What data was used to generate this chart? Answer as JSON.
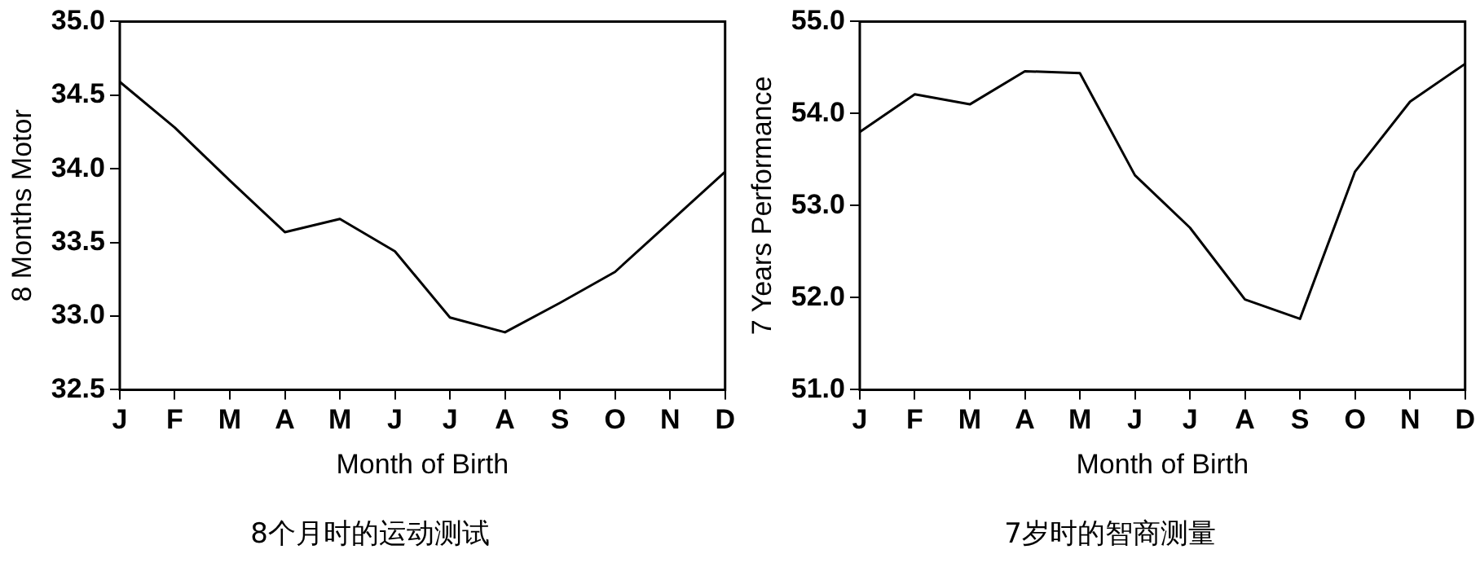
{
  "chart_data": [
    {
      "type": "line",
      "xlabel": "Month of Birth",
      "ylabel": "8 Months Motor",
      "categories": [
        "J",
        "F",
        "M",
        "A",
        "M",
        "J",
        "J",
        "A",
        "S",
        "O",
        "N",
        "D"
      ],
      "series": [
        {
          "color": "#000000",
          "values": [
            34.59,
            34.28,
            33.92,
            33.57,
            33.66,
            33.44,
            32.99,
            32.89,
            33.09,
            33.3,
            33.64,
            33.98
          ]
        }
      ],
      "ylim": [
        32.5,
        35.0
      ],
      "yticks": [
        {
          "value": 32.5,
          "label": "32.5"
        },
        {
          "value": 33,
          "label": "33.0"
        },
        {
          "value": 33.5,
          "label": "33.5"
        },
        {
          "value": 34,
          "label": "34.0"
        },
        {
          "value": 34.5,
          "label": "34.5"
        },
        {
          "value": 35,
          "label": "35.0"
        }
      ],
      "grid": false,
      "legend": false,
      "marker": "none",
      "line_style": "solid",
      "annotations": [
        "8个月时的运动测试"
      ]
    },
    {
      "type": "line",
      "xlabel": "Month of Birth",
      "ylabel": "7 Years Performance",
      "categories": [
        "J",
        "F",
        "M",
        "A",
        "M",
        "J",
        "J",
        "A",
        "S",
        "O",
        "N",
        "D"
      ],
      "series": [
        {
          "color": "#000000",
          "values": [
            53.8,
            54.21,
            54.1,
            54.46,
            54.44,
            53.33,
            52.76,
            51.98,
            51.77,
            53.37,
            54.13,
            54.54
          ]
        }
      ],
      "ylim": [
        51.0,
        55.0
      ],
      "yticks": [
        {
          "value": 51,
          "label": "51.0"
        },
        {
          "value": 52,
          "label": "52.0"
        },
        {
          "value": 53,
          "label": "53.0"
        },
        {
          "value": 54,
          "label": "54.0"
        },
        {
          "value": 55,
          "label": "55.0"
        }
      ],
      "grid": false,
      "legend": false,
      "marker": "none",
      "line_style": "solid",
      "annotations": [
        "7岁时的智商测量"
      ]
    }
  ]
}
